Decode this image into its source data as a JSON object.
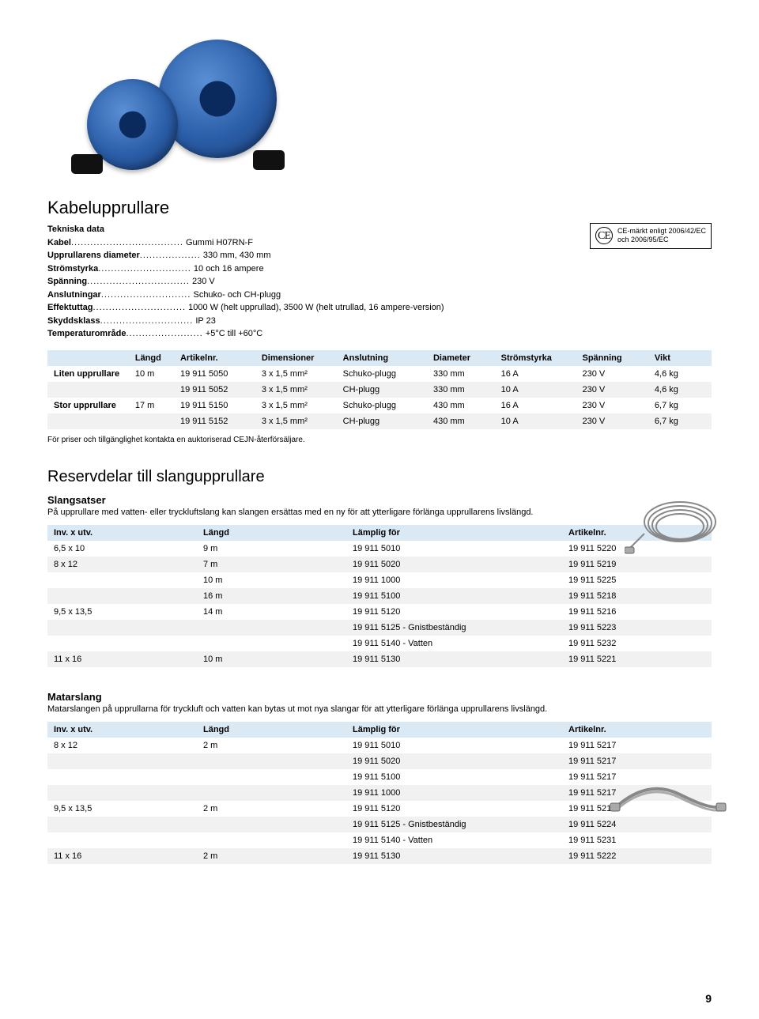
{
  "section1": {
    "title": "Kabelupprullare",
    "techTitle": "Tekniska data",
    "specs": [
      {
        "label": "Kabel",
        "value": "Gummi H07RN-F"
      },
      {
        "label": "Upprullarens diameter",
        "value": "330 mm, 430 mm"
      },
      {
        "label": "Strömstyrka",
        "value": "10 och 16 ampere"
      },
      {
        "label": "Spänning",
        "value": "230 V"
      },
      {
        "label": "Anslutningar",
        "value": "Schuko- och CH-plugg"
      },
      {
        "label": "Effektuttag",
        "value": "1000 W (helt upprullad), 3500 W (helt utrullad, 16 ampere-version)"
      },
      {
        "label": "Skyddsklass",
        "value": "IP 23"
      },
      {
        "label": "Temperaturområde",
        "value": "+5°C till +60°C"
      }
    ],
    "ce": {
      "line1": "CE-märkt enligt 2006/42/EC",
      "line2": "och 2006/95/EC"
    }
  },
  "table1": {
    "headers": [
      "",
      "Längd",
      "Artikelnr.",
      "Dimensioner",
      "Anslutning",
      "Diameter",
      "Strömstyrka",
      "Spänning",
      "Vikt"
    ],
    "rows": [
      [
        "Liten upprullare",
        "10 m",
        "19 911 5050",
        "3 x 1,5 mm²",
        "Schuko-plugg",
        "330 mm",
        "16 A",
        "230 V",
        "4,6 kg"
      ],
      [
        "",
        "",
        "19 911 5052",
        "3 x 1,5 mm²",
        "CH-plugg",
        "330 mm",
        "10 A",
        "230 V",
        "4,6 kg"
      ],
      [
        "Stor upprullare",
        "17 m",
        "19 911 5150",
        "3 x 1,5 mm²",
        "Schuko-plugg",
        "430 mm",
        "16 A",
        "230 V",
        "6,7 kg"
      ],
      [
        "",
        "",
        "19 911 5152",
        "3 x 1,5 mm²",
        "CH-plugg",
        "430 mm",
        "10 A",
        "230 V",
        "6,7 kg"
      ]
    ],
    "note": "För priser och tillgänglighet kontakta en auktoriserad CEJN-återförsäljare."
  },
  "section2": {
    "title": "Reservdelar till slangupprullare",
    "sub1": {
      "title": "Slangsatser",
      "desc": "På upprullare med vatten- eller tryckluftslang kan slangen ersättas med en ny för att ytterligare förlänga upprullarens livslängd."
    },
    "table2": {
      "headers": [
        "Inv. x utv.",
        "Längd",
        "Lämplig för",
        "Artikelnr."
      ],
      "rows": [
        [
          "6,5 x 10",
          "9 m",
          "19 911 5010",
          "19 911 5220"
        ],
        [
          "8 x 12",
          "7 m",
          "19 911 5020",
          "19 911 5219"
        ],
        [
          "",
          "10 m",
          "19 911 1000",
          "19 911 5225"
        ],
        [
          "",
          "16 m",
          "19 911 5100",
          "19 911 5218"
        ],
        [
          "9,5 x 13,5",
          "14 m",
          "19 911 5120",
          "19 911 5216"
        ],
        [
          "",
          "",
          "19 911 5125 - Gnistbeständig",
          "19 911 5223"
        ],
        [
          "",
          "",
          "19 911 5140 - Vatten",
          "19 911 5232"
        ],
        [
          "11 x 16",
          "10 m",
          "19 911 5130",
          "19 911 5221"
        ]
      ]
    },
    "sub2": {
      "title": "Matarslang",
      "desc": "Matarslangen på upprullarna för tryckluft och vatten kan bytas ut mot nya slangar för att ytterligare förlänga upprullarens livslängd."
    },
    "table3": {
      "headers": [
        "Inv. x utv.",
        "Längd",
        "Lämplig för",
        "Artikelnr."
      ],
      "rows": [
        [
          "8 x 12",
          "2 m",
          "19 911 5010",
          "19 911 5217"
        ],
        [
          "",
          "",
          "19 911 5020",
          "19 911 5217"
        ],
        [
          "",
          "",
          "19 911 5100",
          "19 911 5217"
        ],
        [
          "",
          "",
          "19 911 1000",
          "19 911 5217"
        ],
        [
          "9,5 x 13,5",
          "2 m",
          "19 911 5120",
          "19 911 5215"
        ],
        [
          "",
          "",
          "19 911 5125 - Gnistbeständig",
          "19 911 5224"
        ],
        [
          "",
          "",
          "19 911 5140 - Vatten",
          "19 911 5231"
        ],
        [
          "11 x 16",
          "2 m",
          "19 911 5130",
          "19 911 5222"
        ]
      ]
    }
  },
  "pagenum": "9",
  "colors": {
    "header_bg": "#dbe9f5",
    "row_alt": "#f1f1f1",
    "reel_blue": "#2b5ea8"
  }
}
